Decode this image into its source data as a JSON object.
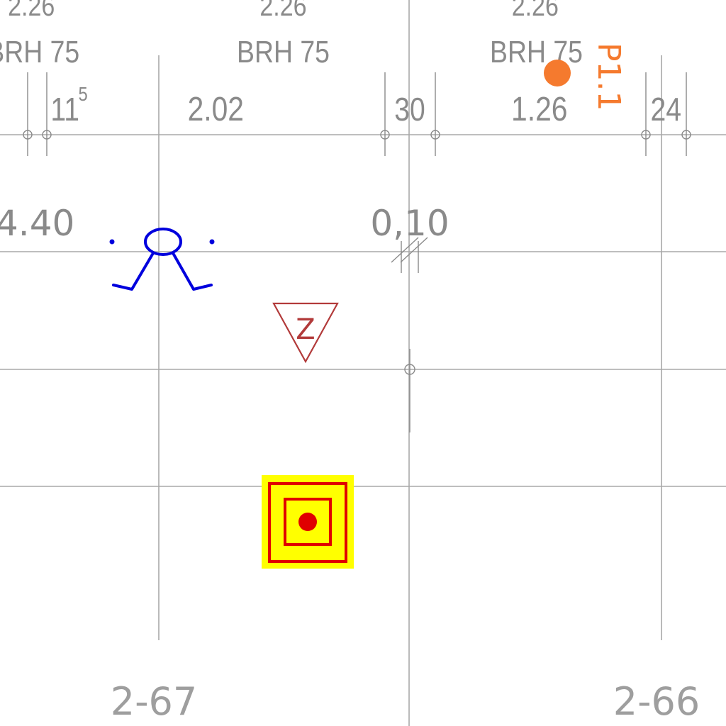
{
  "dimensions": {
    "top_left": "2.26",
    "top_mid": "2.26",
    "top_right": "2.26",
    "brh_left": "BRH 75",
    "brh_mid": "BRH 75",
    "brh_right": "BRH 75",
    "d_11_base": "11",
    "d_11_sup": "5",
    "d_202": "2.02",
    "d_30": "30",
    "d_126": "1.26",
    "d_24": "24",
    "d_440": "4.40",
    "d_010": "0,10"
  },
  "markers": {
    "point_label": "P1.1",
    "triangle_letter": "Z"
  },
  "axes": {
    "left": "2-67",
    "right": "2-66"
  },
  "colors": {
    "grid": "#a8a8a8",
    "dimension_text": "#8a8a8a",
    "person_symbol": "#0000dd",
    "triangle": "#b23a3a",
    "marker_fill": "#ffff00",
    "marker_stroke": "#e00000",
    "point": "#f57a2e"
  },
  "icons": [
    "person-symbol-icon",
    "triangle-z-icon",
    "square-target-icon",
    "orange-point-icon"
  ]
}
